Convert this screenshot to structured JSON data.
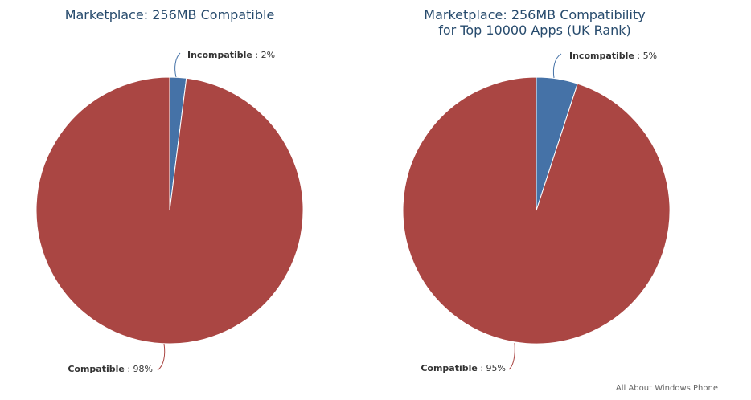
{
  "chart_data": [
    {
      "type": "pie",
      "title": "Marketplace: 256MB Compatible",
      "slices": [
        {
          "name": "Incompatible",
          "value": 2,
          "label": "2%",
          "color": "#4572a7"
        },
        {
          "name": "Compatible",
          "value": 98,
          "label": "98%",
          "color": "#aa4643"
        }
      ],
      "legend": "none"
    },
    {
      "type": "pie",
      "title_lines": [
        "Marketplace: 256MB Compatibility",
        "for Top 10000 Apps (UK Rank)"
      ],
      "slices": [
        {
          "name": "Incompatible",
          "value": 5,
          "label": "5%",
          "color": "#4572a7"
        },
        {
          "name": "Compatible",
          "value": 95,
          "label": "95%",
          "color": "#aa4643"
        }
      ],
      "legend": "none"
    }
  ],
  "credit": "All About Windows Phone"
}
